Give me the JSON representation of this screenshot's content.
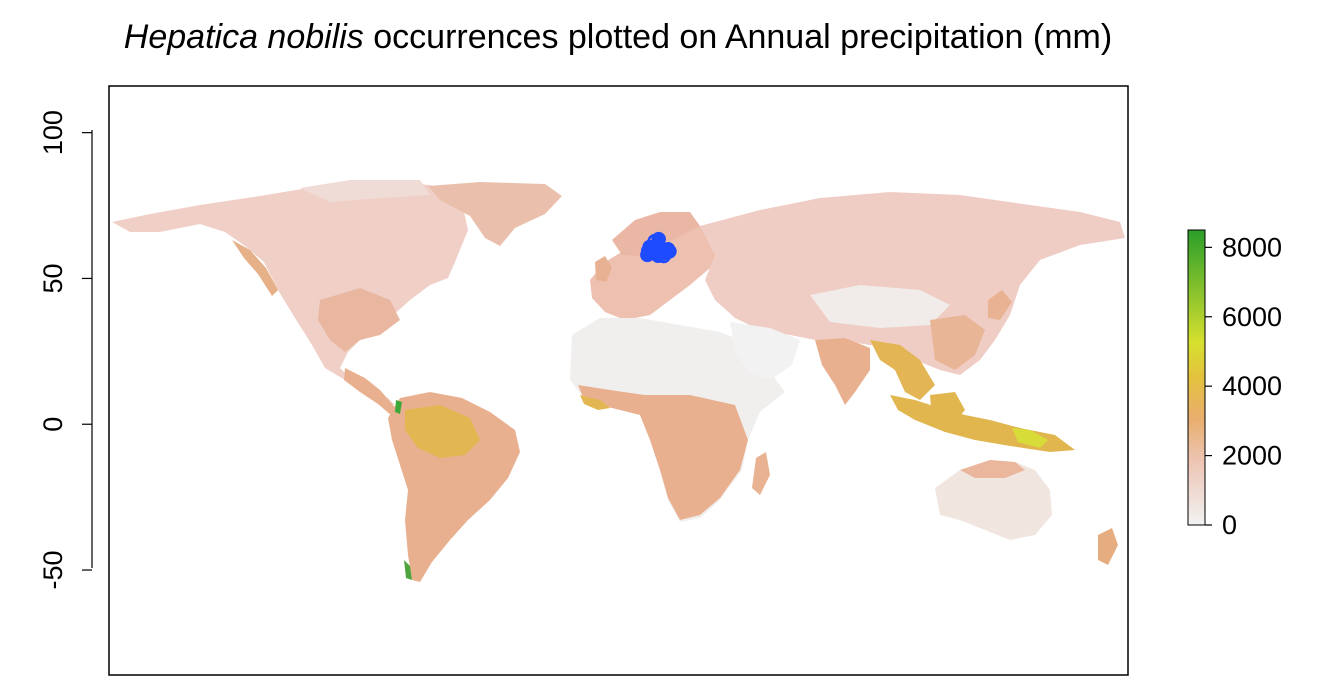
{
  "title": {
    "species": "Hepatica nobilis",
    "rest": " occurrences plotted on Annual precipitation (mm)"
  },
  "map": {
    "y_axis_ticks": [
      "100",
      "50",
      "0",
      "-50"
    ],
    "y_tick_values": [
      100,
      50,
      0,
      -50
    ],
    "xlim": [
      -180,
      180
    ],
    "ylim": [
      -86,
      116
    ],
    "colors": {
      "ocean": "#ffffff",
      "dry": "#f1f1f1",
      "low": "#f2cfc4",
      "mid": "#eab08a",
      "wet": "#e4b34a",
      "very_wet": "#dfe03a",
      "extreme": "#2a9e2a",
      "points": "#1f4bff"
    }
  },
  "legend": {
    "ticks": [
      "8000",
      "6000",
      "4000",
      "2000",
      "0"
    ],
    "values": [
      8000,
      6000,
      4000,
      2000,
      0
    ],
    "range": [
      0,
      8500
    ],
    "gradient": [
      "#f2f2f2",
      "#edc4b3",
      "#e9ae6e",
      "#e3c23d",
      "#d6e02f",
      "#2a9e2a"
    ]
  },
  "occurrences": [
    {
      "lon": 10.5,
      "lat": 59.5
    },
    {
      "lon": 11.2,
      "lat": 59.0
    },
    {
      "lon": 12.0,
      "lat": 58.7
    },
    {
      "lon": 13.0,
      "lat": 59.3
    },
    {
      "lon": 14.5,
      "lat": 59.8
    },
    {
      "lon": 15.8,
      "lat": 58.6
    },
    {
      "lon": 16.8,
      "lat": 59.4
    },
    {
      "lon": 17.5,
      "lat": 60.0
    },
    {
      "lon": 18.0,
      "lat": 59.3
    },
    {
      "lon": 12.5,
      "lat": 60.2
    },
    {
      "lon": 11.0,
      "lat": 60.8
    },
    {
      "lon": 14.0,
      "lat": 57.8
    },
    {
      "lon": 12.8,
      "lat": 62.8
    },
    {
      "lon": 14.2,
      "lat": 63.5
    },
    {
      "lon": 13.5,
      "lat": 61.5
    },
    {
      "lon": 16.0,
      "lat": 57.7
    },
    {
      "lon": 10.2,
      "lat": 58.1
    }
  ]
}
